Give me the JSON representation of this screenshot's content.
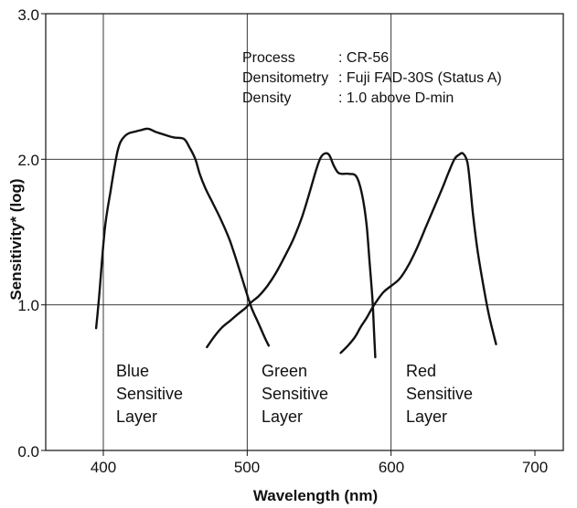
{
  "chart_data": {
    "type": "line",
    "xlabel": "Wavelength (nm)",
    "ylabel": "Sensitivity* (log)",
    "xlim": [
      375,
      725
    ],
    "ylim": [
      0.0,
      3.0
    ],
    "xticks": [
      400,
      500,
      600,
      700
    ],
    "yticks": [
      0.0,
      1.0,
      2.0,
      3.0
    ],
    "x_tick_labels": [
      "400",
      "500",
      "600",
      "700"
    ],
    "y_tick_labels": [
      "0.0",
      "1.0",
      "2.0",
      "3.0"
    ],
    "grid": true,
    "annotation": {
      "rows": [
        {
          "key": "Process",
          "value": ": CR-56"
        },
        {
          "key": "Densitometry",
          "value": ": Fuji FAD-30S (Status A)"
        },
        {
          "key": "Density",
          "value": ": 1.0 above D-min"
        }
      ]
    },
    "layer_labels": [
      {
        "lines": [
          "Blue",
          "Sensitive",
          "Layer"
        ]
      },
      {
        "lines": [
          "Green",
          "Sensitive",
          "Layer"
        ]
      },
      {
        "lines": [
          "Red",
          "Sensitive",
          "Layer"
        ]
      }
    ],
    "series": [
      {
        "x": [
          395,
          397,
          401,
          405,
          408,
          410,
          412,
          415,
          418,
          422,
          426,
          431,
          436,
          442,
          449,
          456,
          460,
          464,
          467,
          471,
          476,
          482,
          488,
          494,
          499,
          503,
          508,
          512,
          515
        ],
        "y": [
          0.84,
          1.05,
          1.52,
          1.78,
          1.96,
          2.06,
          2.12,
          2.16,
          2.18,
          2.19,
          2.2,
          2.21,
          2.19,
          2.17,
          2.15,
          2.14,
          2.08,
          2.0,
          1.9,
          1.8,
          1.7,
          1.58,
          1.44,
          1.26,
          1.1,
          0.98,
          0.87,
          0.78,
          0.72
        ]
      },
      {
        "x": [
          472,
          477,
          482,
          488,
          494,
          499,
          503,
          508,
          514,
          520,
          526,
          532,
          538,
          543,
          548,
          551,
          554,
          557,
          560,
          563,
          566,
          571,
          576,
          580,
          583,
          585,
          587,
          588,
          589
        ],
        "y": [
          0.71,
          0.78,
          0.84,
          0.89,
          0.94,
          0.98,
          1.02,
          1.06,
          1.13,
          1.22,
          1.33,
          1.45,
          1.6,
          1.76,
          1.93,
          2.01,
          2.04,
          2.03,
          1.96,
          1.91,
          1.9,
          1.9,
          1.88,
          1.75,
          1.55,
          1.3,
          1.05,
          0.85,
          0.64
        ]
      },
      {
        "x": [
          565,
          570,
          575,
          579,
          583,
          587,
          591,
          595,
          600,
          606,
          612,
          618,
          624,
          630,
          636,
          640,
          644,
          647,
          650,
          653,
          655,
          657,
          660,
          664,
          668,
          673
        ],
        "y": [
          0.67,
          0.72,
          0.78,
          0.85,
          0.91,
          0.98,
          1.04,
          1.09,
          1.13,
          1.18,
          1.27,
          1.39,
          1.53,
          1.67,
          1.81,
          1.91,
          2.0,
          2.03,
          2.04,
          1.98,
          1.82,
          1.62,
          1.38,
          1.14,
          0.93,
          0.73
        ]
      }
    ],
    "colors": {
      "line": "#111111",
      "grid": "#222222",
      "background": "#ffffff"
    }
  }
}
